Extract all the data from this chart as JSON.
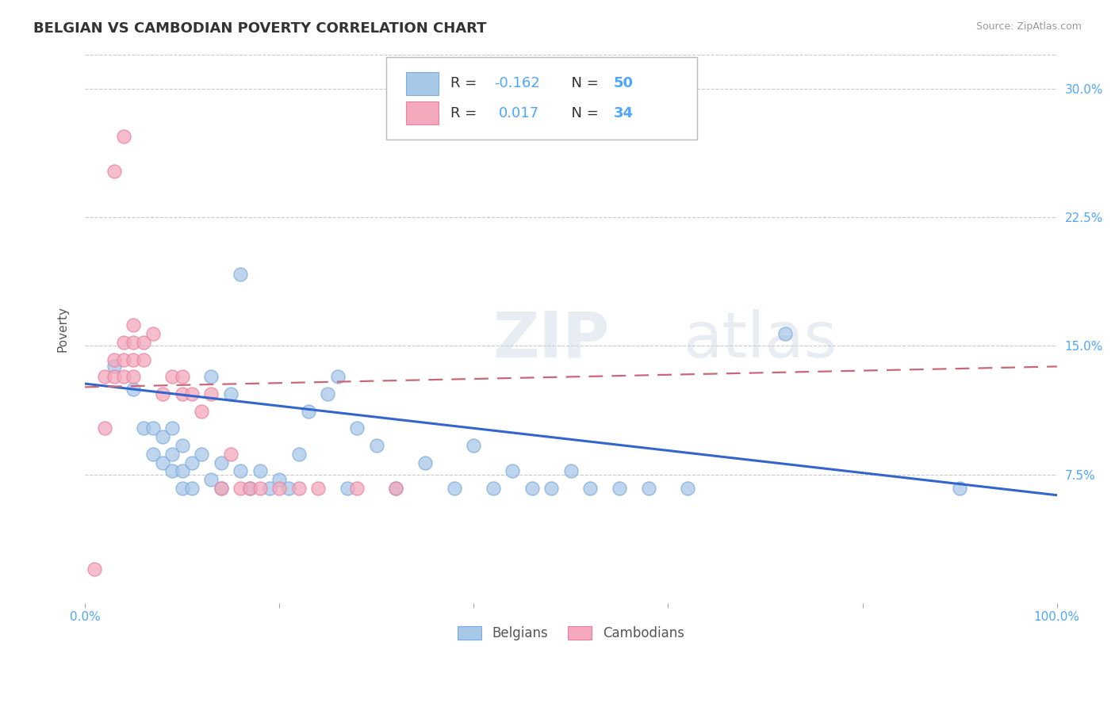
{
  "title": "BELGIAN VS CAMBODIAN POVERTY CORRELATION CHART",
  "source": "Source: ZipAtlas.com",
  "ylabel": "Poverty",
  "yticks": [
    0.0,
    0.075,
    0.15,
    0.225,
    0.3
  ],
  "ytick_labels": [
    "",
    "7.5%",
    "15.0%",
    "22.5%",
    "30.0%"
  ],
  "xlim": [
    0.0,
    1.0
  ],
  "ylim": [
    0.0,
    0.32
  ],
  "watermark": "ZIPatlas",
  "legend_blue_r": "-0.162",
  "legend_blue_n": "50",
  "legend_pink_r": "0.017",
  "legend_pink_n": "34",
  "blue_color": "#a8c8e8",
  "pink_color": "#f4a8bc",
  "blue_edge_color": "#7aace0",
  "pink_edge_color": "#e880a0",
  "blue_line_color": "#3366cc",
  "pink_line_color": "#cc6677",
  "axis_color": "#4da6ff",
  "blue_scatter_x": [
    0.03,
    0.05,
    0.06,
    0.07,
    0.07,
    0.08,
    0.08,
    0.09,
    0.09,
    0.09,
    0.1,
    0.1,
    0.1,
    0.11,
    0.11,
    0.12,
    0.13,
    0.13,
    0.14,
    0.14,
    0.15,
    0.16,
    0.16,
    0.17,
    0.18,
    0.19,
    0.2,
    0.21,
    0.22,
    0.23,
    0.25,
    0.26,
    0.27,
    0.28,
    0.3,
    0.32,
    0.35,
    0.38,
    0.4,
    0.42,
    0.44,
    0.46,
    0.48,
    0.5,
    0.52,
    0.55,
    0.58,
    0.62,
    0.72,
    0.9
  ],
  "blue_scatter_y": [
    0.138,
    0.125,
    0.102,
    0.102,
    0.087,
    0.097,
    0.082,
    0.102,
    0.087,
    0.077,
    0.092,
    0.077,
    0.067,
    0.082,
    0.067,
    0.087,
    0.072,
    0.132,
    0.067,
    0.082,
    0.122,
    0.192,
    0.077,
    0.067,
    0.077,
    0.067,
    0.072,
    0.067,
    0.087,
    0.112,
    0.122,
    0.132,
    0.067,
    0.102,
    0.092,
    0.067,
    0.082,
    0.067,
    0.092,
    0.067,
    0.077,
    0.067,
    0.067,
    0.077,
    0.067,
    0.067,
    0.067,
    0.067,
    0.157,
    0.067
  ],
  "pink_scatter_x": [
    0.01,
    0.02,
    0.02,
    0.03,
    0.03,
    0.03,
    0.04,
    0.04,
    0.04,
    0.05,
    0.05,
    0.05,
    0.05,
    0.06,
    0.06,
    0.07,
    0.08,
    0.09,
    0.1,
    0.1,
    0.11,
    0.12,
    0.13,
    0.14,
    0.15,
    0.16,
    0.17,
    0.18,
    0.2,
    0.22,
    0.24,
    0.28,
    0.32,
    0.04
  ],
  "pink_scatter_y": [
    0.02,
    0.132,
    0.102,
    0.252,
    0.132,
    0.142,
    0.142,
    0.152,
    0.132,
    0.162,
    0.152,
    0.142,
    0.132,
    0.152,
    0.142,
    0.157,
    0.122,
    0.132,
    0.132,
    0.122,
    0.122,
    0.112,
    0.122,
    0.067,
    0.087,
    0.067,
    0.067,
    0.067,
    0.067,
    0.067,
    0.067,
    0.067,
    0.067,
    0.272
  ],
  "blue_trend_y_start": 0.128,
  "blue_trend_y_end": 0.063,
  "pink_trend_y_start": 0.126,
  "pink_trend_y_end": 0.138,
  "grid_color": "#c8c8c8",
  "background_color": "#ffffff",
  "title_fontsize": 13,
  "axis_label_fontsize": 11,
  "tick_fontsize": 11,
  "legend_fontsize": 13
}
